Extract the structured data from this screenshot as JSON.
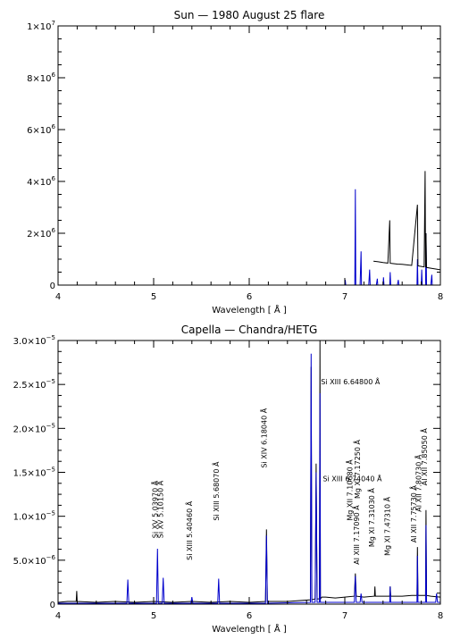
{
  "chart_data": [
    {
      "type": "line",
      "title": "Sun — 1980 August 25 flare",
      "xlabel": "Wavelength [ Å ]",
      "ylabel": "",
      "xlim": [
        4,
        8
      ],
      "ylim": [
        0,
        10000000
      ],
      "xticks": [
        4,
        5,
        6,
        7,
        8
      ],
      "yticks": [
        {
          "value": 0,
          "mant": "0",
          "exp": ""
        },
        {
          "value": 2000000,
          "mant": "2×10",
          "exp": "6"
        },
        {
          "value": 4000000,
          "mant": "4×10",
          "exp": "6"
        },
        {
          "value": 6000000,
          "mant": "6×10",
          "exp": "6"
        },
        {
          "value": 8000000,
          "mant": "8×10",
          "exp": "6"
        },
        {
          "value": 10000000,
          "mant": "1×10",
          "exp": "7"
        }
      ],
      "series": [
        {
          "color": "#0000cc",
          "points": [
            [
              7.0,
              0
            ],
            [
              7.005,
              200000
            ],
            [
              7.01,
              0
            ],
            [
              7.105,
              0
            ],
            [
              7.11,
              3700000
            ],
            [
              7.115,
              0
            ],
            [
              7.16,
              0
            ],
            [
              7.17,
              1300000
            ],
            [
              7.175,
              0
            ],
            [
              7.25,
              0
            ],
            [
              7.26,
              600000
            ],
            [
              7.265,
              0
            ],
            [
              7.33,
              0
            ],
            [
              7.34,
              250000
            ],
            [
              7.345,
              0
            ],
            [
              7.4,
              0
            ],
            [
              7.405,
              300000
            ],
            [
              7.41,
              0
            ],
            [
              7.47,
              0
            ],
            [
              7.475,
              500000
            ],
            [
              7.48,
              0
            ],
            [
              7.55,
              0
            ],
            [
              7.56,
              200000
            ],
            [
              7.565,
              0
            ],
            [
              7.755,
              0
            ],
            [
              7.76,
              1000000
            ],
            [
              7.765,
              0
            ],
            [
              7.8,
              0
            ],
            [
              7.805,
              600000
            ],
            [
              7.81,
              0
            ],
            [
              7.845,
              0
            ],
            [
              7.85,
              2000000
            ],
            [
              7.855,
              0
            ],
            [
              7.9,
              0
            ],
            [
              7.91,
              400000
            ],
            [
              7.915,
              0
            ],
            [
              8.0,
              0
            ]
          ]
        },
        {
          "color": "#000000",
          "points": [
            [
              7.3,
              920000
            ],
            [
              7.35,
              900000
            ],
            [
              7.4,
              870000
            ],
            [
              7.45,
              850000
            ],
            [
              7.47,
              2500000
            ],
            [
              7.475,
              840000
            ],
            [
              7.5,
              830000
            ],
            [
              7.55,
              810000
            ],
            [
              7.6,
              800000
            ],
            [
              7.65,
              780000
            ],
            [
              7.7,
              760000
            ],
            [
              7.76,
              3100000
            ],
            [
              7.765,
              740000
            ],
            [
              7.8,
              720000
            ],
            [
              7.83,
              700000
            ],
            [
              7.84,
              4400000
            ],
            [
              7.845,
              690000
            ],
            [
              7.85,
              2000000
            ],
            [
              7.855,
              680000
            ],
            [
              7.9,
              650000
            ],
            [
              7.95,
              620000
            ],
            [
              8.0,
              590000
            ]
          ]
        }
      ]
    },
    {
      "type": "line",
      "title": "Capella — Chandra/HETG",
      "xlabel": "Wavelength [ Å ]",
      "ylabel": "",
      "xlim": [
        4,
        8
      ],
      "ylim": [
        0,
        3e-05
      ],
      "xticks": [
        4,
        5,
        6,
        7,
        8
      ],
      "yticks": [
        {
          "value": 0,
          "mant": "0",
          "exp": ""
        },
        {
          "value": 5e-06,
          "mant": "5.0×10",
          "exp": "−6"
        },
        {
          "value": 1e-05,
          "mant": "1.0×10",
          "exp": "−5"
        },
        {
          "value": 1.5e-05,
          "mant": "1.5×10",
          "exp": "−5"
        },
        {
          "value": 2e-05,
          "mant": "2.0×10",
          "exp": "−5"
        },
        {
          "value": 2.5e-05,
          "mant": "2.5×10",
          "exp": "−5"
        },
        {
          "value": 3e-05,
          "mant": "3.0×10",
          "exp": "−5"
        }
      ],
      "series": [
        {
          "color": "#000000",
          "points": [
            [
              4.0,
              2e-07
            ],
            [
              4.1,
              3e-07
            ],
            [
              4.19,
              3e-07
            ],
            [
              4.195,
              1.5e-06
            ],
            [
              4.2,
              3e-07
            ],
            [
              4.4,
              2e-07
            ],
            [
              4.6,
              3e-07
            ],
            [
              4.8,
              2e-07
            ],
            [
              5.0,
              3e-07
            ],
            [
              5.2,
              2e-07
            ],
            [
              5.4,
              3e-07
            ],
            [
              5.6,
              2e-07
            ],
            [
              5.8,
              3e-07
            ],
            [
              6.0,
              2e-07
            ],
            [
              6.17,
              3e-07
            ],
            [
              6.18,
              8.5e-06
            ],
            [
              6.19,
              3e-07
            ],
            [
              6.4,
              3e-07
            ],
            [
              6.64,
              5e-07
            ],
            [
              6.648,
              2.7e-05
            ],
            [
              6.655,
              5e-07
            ],
            [
              6.69,
              6e-07
            ],
            [
              6.7,
              1.6e-05
            ],
            [
              6.71,
              6e-07
            ],
            [
              6.735,
              6e-07
            ],
            [
              6.74,
              3e-05
            ],
            [
              6.745,
              6e-07
            ],
            [
              6.76,
              8e-07
            ],
            [
              6.8,
              8e-07
            ],
            [
              6.9,
              7e-07
            ],
            [
              7.0,
              8e-07
            ],
            [
              7.1,
              9e-07
            ],
            [
              7.11,
              3.5e-06
            ],
            [
              7.12,
              9e-07
            ],
            [
              7.2,
              8e-07
            ],
            [
              7.31,
              9e-07
            ],
            [
              7.315,
              2e-06
            ],
            [
              7.32,
              9e-07
            ],
            [
              7.47,
              9e-07
            ],
            [
              7.475,
              2e-06
            ],
            [
              7.48,
              9e-07
            ],
            [
              7.6,
              9e-07
            ],
            [
              7.7,
              1e-06
            ],
            [
              7.755,
              1e-06
            ],
            [
              7.76,
              6.5e-06
            ],
            [
              7.765,
              1e-06
            ],
            [
              7.845,
              1e-06
            ],
            [
              7.85,
              1.07e-05
            ],
            [
              7.855,
              1e-06
            ],
            [
              7.9,
              9e-07
            ],
            [
              8.0,
              8e-07
            ]
          ]
        },
        {
          "color": "#0000cc",
          "points": [
            [
              4.0,
              1e-07
            ],
            [
              4.72,
              1e-07
            ],
            [
              4.73,
              2.8e-06
            ],
            [
              4.74,
              1e-07
            ],
            [
              5.03,
              1e-07
            ],
            [
              5.04,
              6.3e-06
            ],
            [
              5.05,
              1e-07
            ],
            [
              5.09,
              1e-07
            ],
            [
              5.1,
              3e-06
            ],
            [
              5.11,
              1e-07
            ],
            [
              5.39,
              1e-07
            ],
            [
              5.4,
              8e-07
            ],
            [
              5.41,
              1e-07
            ],
            [
              5.67,
              1e-07
            ],
            [
              5.68,
              2.9e-06
            ],
            [
              5.69,
              1e-07
            ],
            [
              6.17,
              1e-07
            ],
            [
              6.18,
              7.8e-06
            ],
            [
              6.19,
              1e-07
            ],
            [
              6.64,
              2e-07
            ],
            [
              6.648,
              2.85e-05
            ],
            [
              6.655,
              2e-07
            ],
            [
              6.69,
              2e-07
            ],
            [
              6.7,
              1.5e-05
            ],
            [
              6.71,
              2e-07
            ],
            [
              6.735,
              2e-07
            ],
            [
              6.74,
              2.4e-05
            ],
            [
              6.745,
              2e-07
            ],
            [
              7.1,
              2e-07
            ],
            [
              7.11,
              3.2e-06
            ],
            [
              7.12,
              2e-07
            ],
            [
              7.16,
              2e-07
            ],
            [
              7.17,
              1.2e-06
            ],
            [
              7.18,
              2e-07
            ],
            [
              7.47,
              2e-07
            ],
            [
              7.475,
              2e-06
            ],
            [
              7.48,
              2e-07
            ],
            [
              7.755,
              2e-07
            ],
            [
              7.76,
              5.5e-06
            ],
            [
              7.765,
              2e-07
            ],
            [
              7.845,
              2e-07
            ],
            [
              7.85,
              9e-06
            ],
            [
              7.855,
              2e-07
            ],
            [
              7.95,
              2e-07
            ],
            [
              7.96,
              1.2e-06
            ],
            [
              7.97,
              2e-07
            ],
            [
              8.0,
              2e-07
            ]
          ]
        }
      ],
      "annotations": [
        {
          "text": "Si XV 5.03970 Å",
          "x": 5.04,
          "y": 7.5e-06,
          "rot": -90
        },
        {
          "text": "Si XV 5.10150 Å",
          "x": 5.1,
          "y": 7.5e-06,
          "rot": -90
        },
        {
          "text": "Si XIII 5.40460 Å",
          "x": 5.4,
          "y": 5e-06,
          "rot": -90
        },
        {
          "text": "Si XIII 5.68070 Å",
          "x": 5.68,
          "y": 9.5e-06,
          "rot": -90
        },
        {
          "text": "Si XIV 6.18040 Å",
          "x": 6.18,
          "y": 1.55e-05,
          "rot": -90
        },
        {
          "text": "Si XIII 6.64800 Å",
          "x": 6.75,
          "y": 2.5e-05,
          "rot": 0
        },
        {
          "text": "Si XIII 6.74040 Å",
          "x": 6.77,
          "y": 1.4e-05,
          "rot": 0
        },
        {
          "text": "Mg XII 7.10680 Å",
          "x": 7.08,
          "y": 9.5e-06,
          "rot": -90
        },
        {
          "text": "Mg XI 7.17250 Å",
          "x": 7.16,
          "y": 1.2e-05,
          "rot": -90
        },
        {
          "text": "Al XIII 7.17090 Å",
          "x": 7.15,
          "y": 4.5e-06,
          "rot": -90
        },
        {
          "text": "Mg XI 7.31030 Å",
          "x": 7.31,
          "y": 6.5e-06,
          "rot": -90
        },
        {
          "text": "Mg XI 7.47310 Å",
          "x": 7.47,
          "y": 5.5e-06,
          "rot": -90
        },
        {
          "text": "Al XII 7.75730 Å",
          "x": 7.75,
          "y": 7e-06,
          "rot": -90
        },
        {
          "text": "Al XII 7.80730 Å",
          "x": 7.8,
          "y": 1.05e-05,
          "rot": -90
        },
        {
          "text": "Al XII 7.85050 Å",
          "x": 7.86,
          "y": 1.35e-05,
          "rot": -90
        }
      ]
    }
  ]
}
